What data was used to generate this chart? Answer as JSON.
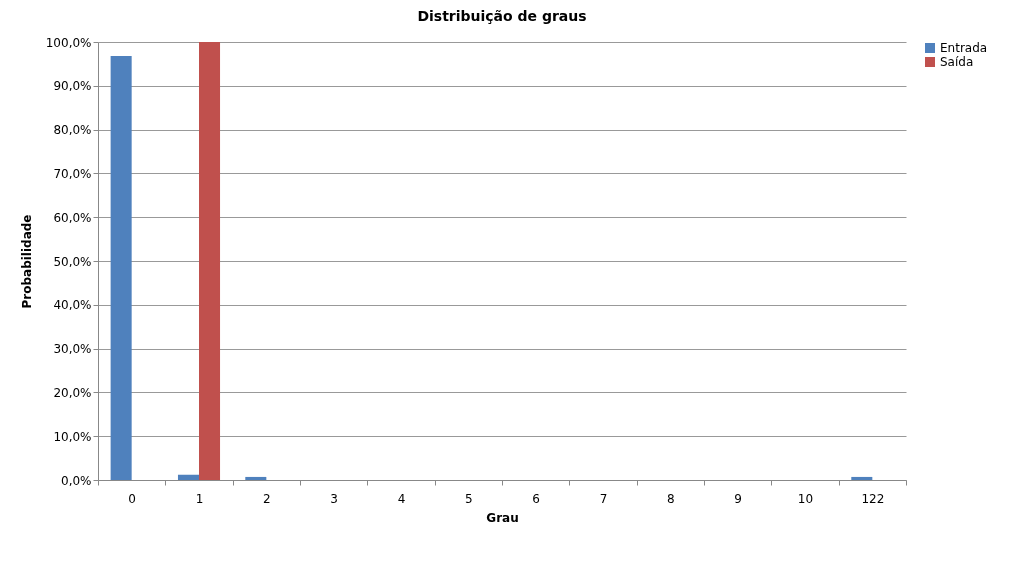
{
  "chart_data": {
    "type": "bar",
    "title": "Distribuição de graus",
    "xlabel": "Grau",
    "ylabel": "Probabilidade",
    "categories": [
      "0",
      "1",
      "2",
      "3",
      "4",
      "5",
      "6",
      "7",
      "8",
      "9",
      "10",
      "122"
    ],
    "series": [
      {
        "name": "Entrada",
        "color": "#4f81bd",
        "values": [
          96.8,
          1.2,
          0.7,
          0,
          0,
          0,
          0,
          0,
          0,
          0,
          0,
          0.7
        ]
      },
      {
        "name": "Saída",
        "color": "#c0504d",
        "values": [
          0,
          100,
          0,
          0,
          0,
          0,
          0,
          0,
          0,
          0,
          0,
          0
        ]
      }
    ],
    "ylim": [
      0,
      100
    ],
    "yticks": [
      {
        "value": 0,
        "label": "0,0%"
      },
      {
        "value": 10,
        "label": "10,0%"
      },
      {
        "value": 20,
        "label": "20,0%"
      },
      {
        "value": 30,
        "label": "30,0%"
      },
      {
        "value": 40,
        "label": "40,0%"
      },
      {
        "value": 50,
        "label": "50,0%"
      },
      {
        "value": 60,
        "label": "60,0%"
      },
      {
        "value": 70,
        "label": "70,0%"
      },
      {
        "value": 80,
        "label": "80,0%"
      },
      {
        "value": 90,
        "label": "90,0%"
      },
      {
        "value": 100,
        "label": "100,0%"
      }
    ],
    "grid": "y",
    "legend": "right"
  }
}
